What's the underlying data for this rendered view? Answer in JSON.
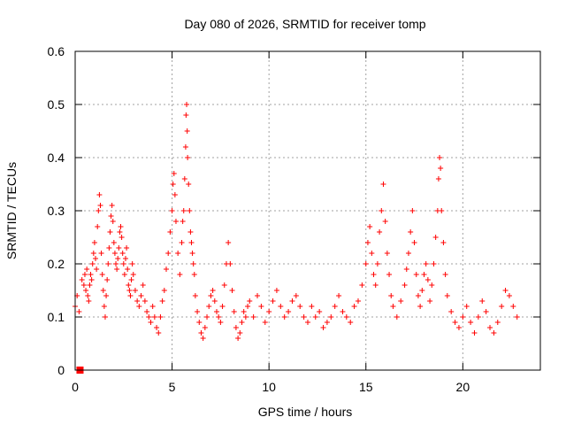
{
  "chart_data": {
    "type": "scatter",
    "title": "Day 080 of 2026, SRMTID for receiver tomp",
    "xlabel": "GPS time / hours",
    "ylabel": "SRMTID / TECUs",
    "xlim": [
      0,
      24
    ],
    "ylim": [
      0,
      0.6
    ],
    "xticks": [
      0,
      5,
      10,
      15,
      20
    ],
    "yticks": [
      0,
      0.1,
      0.2,
      0.3,
      0.4,
      0.5,
      0.6
    ],
    "xtick_labels": [
      "0",
      "5",
      "10",
      "15",
      "20"
    ],
    "ytick_labels": [
      "0",
      "0.1",
      "0.2",
      "0.3",
      "0.4",
      "0.5",
      "0.6"
    ],
    "grid": true,
    "marker": "plus",
    "color": "#ff0000",
    "extra_markers": [
      {
        "x": 0.25,
        "y": 0.0,
        "shape": "square"
      }
    ],
    "series": [
      {
        "name": "SRMTID",
        "x": [
          0.0,
          0.1,
          0.2,
          0.35,
          0.45,
          0.5,
          0.55,
          0.6,
          0.65,
          0.7,
          0.75,
          0.8,
          0.85,
          0.9,
          0.95,
          1.0,
          1.05,
          1.1,
          1.15,
          1.2,
          1.25,
          1.3,
          1.35,
          1.4,
          1.45,
          1.5,
          1.55,
          1.6,
          1.65,
          1.7,
          1.75,
          1.8,
          1.85,
          1.9,
          1.95,
          2.0,
          2.05,
          2.1,
          2.15,
          2.2,
          2.25,
          2.3,
          2.35,
          2.4,
          2.45,
          2.5,
          2.55,
          2.6,
          2.65,
          2.7,
          2.75,
          2.8,
          2.85,
          2.9,
          2.95,
          3.0,
          3.1,
          3.2,
          3.3,
          3.4,
          3.5,
          3.6,
          3.7,
          3.8,
          3.9,
          4.0,
          4.1,
          4.2,
          4.3,
          4.4,
          4.5,
          4.6,
          4.7,
          4.8,
          4.9,
          5.0,
          5.05,
          5.1,
          5.15,
          5.2,
          5.3,
          5.4,
          5.5,
          5.55,
          5.6,
          5.65,
          5.7,
          5.72,
          5.75,
          5.78,
          5.8,
          5.85,
          5.9,
          5.95,
          6.0,
          6.05,
          6.1,
          6.15,
          6.2,
          6.3,
          6.4,
          6.5,
          6.6,
          6.7,
          6.8,
          6.9,
          7.0,
          7.1,
          7.2,
          7.3,
          7.4,
          7.5,
          7.6,
          7.7,
          7.8,
          7.9,
          8.0,
          8.1,
          8.2,
          8.3,
          8.4,
          8.5,
          8.6,
          8.7,
          8.8,
          8.9,
          9.0,
          9.2,
          9.4,
          9.6,
          9.8,
          10.0,
          10.2,
          10.4,
          10.6,
          10.8,
          11.0,
          11.2,
          11.4,
          11.6,
          11.8,
          12.0,
          12.2,
          12.4,
          12.6,
          12.8,
          13.0,
          13.2,
          13.4,
          13.6,
          13.8,
          14.0,
          14.2,
          14.4,
          14.6,
          14.8,
          15.0,
          15.1,
          15.2,
          15.3,
          15.4,
          15.5,
          15.6,
          15.7,
          15.8,
          15.9,
          16.0,
          16.1,
          16.2,
          16.3,
          16.4,
          16.6,
          16.8,
          17.0,
          17.1,
          17.2,
          17.3,
          17.4,
          17.5,
          17.6,
          17.7,
          17.8,
          17.9,
          18.0,
          18.1,
          18.2,
          18.3,
          18.4,
          18.5,
          18.6,
          18.7,
          18.75,
          18.8,
          18.85,
          18.9,
          19.0,
          19.1,
          19.2,
          19.4,
          19.6,
          19.8,
          20.0,
          20.2,
          20.4,
          20.6,
          20.8,
          21.0,
          21.2,
          21.4,
          21.6,
          21.8,
          22.0,
          22.2,
          22.4,
          22.6,
          22.8
        ],
        "y": [
          0.12,
          0.14,
          0.11,
          0.17,
          0.16,
          0.18,
          0.15,
          0.19,
          0.14,
          0.13,
          0.16,
          0.18,
          0.17,
          0.2,
          0.22,
          0.24,
          0.21,
          0.19,
          0.27,
          0.3,
          0.33,
          0.31,
          0.22,
          0.18,
          0.15,
          0.12,
          0.1,
          0.14,
          0.17,
          0.2,
          0.23,
          0.26,
          0.29,
          0.31,
          0.28,
          0.24,
          0.22,
          0.2,
          0.19,
          0.21,
          0.23,
          0.26,
          0.27,
          0.25,
          0.22,
          0.2,
          0.18,
          0.21,
          0.23,
          0.19,
          0.16,
          0.15,
          0.14,
          0.17,
          0.2,
          0.18,
          0.15,
          0.13,
          0.12,
          0.14,
          0.16,
          0.13,
          0.11,
          0.1,
          0.09,
          0.12,
          0.1,
          0.08,
          0.07,
          0.1,
          0.13,
          0.15,
          0.19,
          0.22,
          0.26,
          0.3,
          0.35,
          0.37,
          0.33,
          0.28,
          0.22,
          0.18,
          0.24,
          0.28,
          0.3,
          0.36,
          0.42,
          0.48,
          0.5,
          0.45,
          0.4,
          0.35,
          0.3,
          0.26,
          0.24,
          0.22,
          0.2,
          0.18,
          0.14,
          0.11,
          0.09,
          0.07,
          0.06,
          0.08,
          0.1,
          0.12,
          0.14,
          0.15,
          0.13,
          0.11,
          0.1,
          0.09,
          0.12,
          0.16,
          0.2,
          0.24,
          0.2,
          0.15,
          0.11,
          0.08,
          0.06,
          0.07,
          0.09,
          0.11,
          0.1,
          0.12,
          0.13,
          0.1,
          0.14,
          0.12,
          0.09,
          0.11,
          0.13,
          0.15,
          0.12,
          0.1,
          0.11,
          0.13,
          0.14,
          0.12,
          0.1,
          0.09,
          0.12,
          0.1,
          0.11,
          0.08,
          0.09,
          0.1,
          0.12,
          0.14,
          0.11,
          0.1,
          0.09,
          0.12,
          0.13,
          0.16,
          0.2,
          0.24,
          0.27,
          0.22,
          0.18,
          0.16,
          0.2,
          0.26,
          0.3,
          0.35,
          0.28,
          0.22,
          0.18,
          0.14,
          0.12,
          0.1,
          0.13,
          0.16,
          0.19,
          0.22,
          0.26,
          0.3,
          0.24,
          0.18,
          0.14,
          0.12,
          0.15,
          0.18,
          0.2,
          0.17,
          0.13,
          0.16,
          0.2,
          0.25,
          0.3,
          0.36,
          0.4,
          0.38,
          0.3,
          0.24,
          0.18,
          0.14,
          0.11,
          0.09,
          0.08,
          0.1,
          0.12,
          0.09,
          0.07,
          0.1,
          0.13,
          0.11,
          0.08,
          0.07,
          0.09,
          0.12,
          0.15,
          0.14,
          0.12,
          0.1
        ]
      }
    ]
  }
}
